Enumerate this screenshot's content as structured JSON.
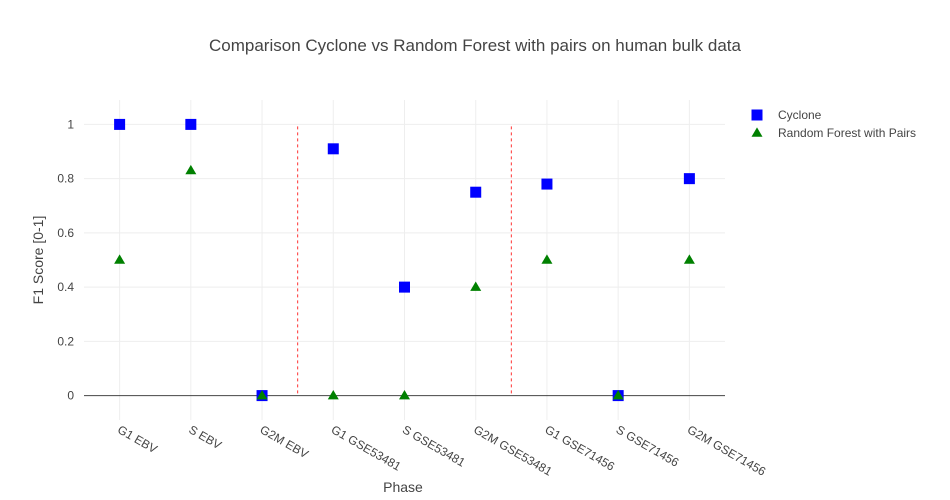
{
  "chart_data": {
    "type": "scatter",
    "title": "Comparison Cyclone vs Random Forest with pairs on human bulk data",
    "xlabel": "Phase",
    "ylabel": "F1 Score [0-1]",
    "ylim": [
      -0.09,
      1.09
    ],
    "yticks": [
      0,
      0.2,
      0.4,
      0.6,
      0.8,
      1
    ],
    "ytick_labels": [
      "0",
      "0.2",
      "0.4",
      "0.6",
      "0.8",
      "1"
    ],
    "categories": [
      "G1 EBV",
      "S EBV",
      "G2M EBV",
      "G1 GSE53481",
      "S GSE53481",
      "G2M GSE53481",
      "G1 GSE71456",
      "S GSE71456",
      "G2M GSE71456"
    ],
    "grid": true,
    "legend_position": "top-right",
    "separators_between": [
      [
        2,
        3
      ],
      [
        5,
        6
      ]
    ],
    "separator_color": "#ff0000",
    "series": [
      {
        "name": "Cyclone",
        "marker": "square",
        "color": "#0000ff",
        "values": [
          1,
          1,
          0,
          0.91,
          0.4,
          0.75,
          0.78,
          0,
          0.8
        ]
      },
      {
        "name": "Random Forest with Pairs",
        "marker": "triangle-up",
        "color": "#008000",
        "values": [
          0.5,
          0.83,
          0,
          0,
          0,
          0.4,
          0.5,
          0,
          0.5
        ]
      }
    ]
  }
}
